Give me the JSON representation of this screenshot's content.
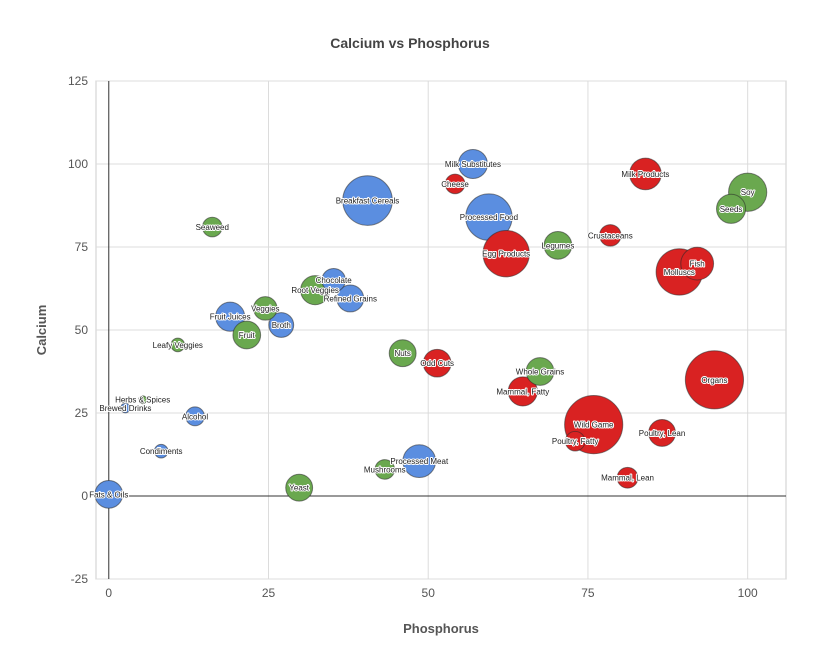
{
  "chart_data": {
    "type": "scatter",
    "variant": "bubble",
    "title": "Calcium vs Phosphorus",
    "xlabel": "Phosphorus",
    "ylabel": "Calcium",
    "xlim": [
      -2,
      106
    ],
    "ylim": [
      -25,
      125
    ],
    "xticks": [
      0,
      25,
      50,
      75,
      100
    ],
    "yticks": [
      -25,
      0,
      25,
      50,
      75,
      100,
      125
    ],
    "grid": true,
    "legend": "none",
    "colors": {
      "blue": "#5B8EE0",
      "green": "#6AA84F",
      "red": "#D92222"
    },
    "points": [
      {
        "label": "Fats & Oils",
        "x": 0,
        "y": 0.5,
        "size": 5,
        "color": "blue"
      },
      {
        "label": "Herbs & Spices",
        "x": 5.3,
        "y": 29,
        "size": 0.2,
        "color": "green"
      },
      {
        "label": "Brewed Drinks",
        "x": 2.6,
        "y": 26.5,
        "size": 0.6,
        "color": "blue"
      },
      {
        "label": "Alcohol",
        "x": 13.5,
        "y": 24,
        "size": 2.3,
        "color": "blue"
      },
      {
        "label": "Condiments",
        "x": 8.2,
        "y": 13.5,
        "size": 1.2,
        "color": "blue"
      },
      {
        "label": "Leafy Veggies",
        "x": 10.8,
        "y": 45.5,
        "size": 1.2,
        "color": "green"
      },
      {
        "label": "Seaweed",
        "x": 16.2,
        "y": 81,
        "size": 2.5,
        "color": "green"
      },
      {
        "label": "Fruit Juices",
        "x": 19,
        "y": 54,
        "size": 5.5,
        "color": "blue"
      },
      {
        "label": "Fruit",
        "x": 21.6,
        "y": 48.5,
        "size": 5,
        "color": "green"
      },
      {
        "label": "Veggies",
        "x": 24.5,
        "y": 56.5,
        "size": 3.6,
        "color": "green"
      },
      {
        "label": "Broth",
        "x": 27,
        "y": 51.5,
        "size": 4,
        "color": "blue"
      },
      {
        "label": "Yeast",
        "x": 29.8,
        "y": 2.5,
        "size": 4.7,
        "color": "green"
      },
      {
        "label": "Root Veggies",
        "x": 32.3,
        "y": 62,
        "size": 5.5,
        "color": "green"
      },
      {
        "label": "Chocolate",
        "x": 35.2,
        "y": 65,
        "size": 3.6,
        "color": "blue"
      },
      {
        "label": "Refined Grains",
        "x": 37.8,
        "y": 59.5,
        "size": 4.7,
        "color": "blue"
      },
      {
        "label": "Breakfast Cereals",
        "x": 40.5,
        "y": 89,
        "size": 16,
        "color": "blue"
      },
      {
        "label": "Mushrooms",
        "x": 43.2,
        "y": 8,
        "size": 2.5,
        "color": "green"
      },
      {
        "label": "Nuts",
        "x": 46,
        "y": 43,
        "size": 4.7,
        "color": "green"
      },
      {
        "label": "Processed Meat",
        "x": 48.6,
        "y": 10.5,
        "size": 7,
        "color": "blue"
      },
      {
        "label": "Odd Cuts",
        "x": 51.4,
        "y": 40,
        "size": 5,
        "color": "red"
      },
      {
        "label": "Cheese",
        "x": 54.2,
        "y": 94,
        "size": 2.5,
        "color": "red"
      },
      {
        "label": "Milk Substitutes",
        "x": 57,
        "y": 100,
        "size": 5.5,
        "color": "blue"
      },
      {
        "label": "Processed Food",
        "x": 59.5,
        "y": 84,
        "size": 14,
        "color": "blue"
      },
      {
        "label": "Egg Products",
        "x": 62.2,
        "y": 73,
        "size": 14,
        "color": "red"
      },
      {
        "label": "Mammal, Fatty",
        "x": 64.8,
        "y": 31.5,
        "size": 5.5,
        "color": "red"
      },
      {
        "label": "Whole Grains",
        "x": 67.5,
        "y": 37.5,
        "size": 5,
        "color": "green"
      },
      {
        "label": "Legumes",
        "x": 70.3,
        "y": 75.5,
        "size": 5,
        "color": "green"
      },
      {
        "label": "Poultry, Fatty",
        "x": 73,
        "y": 16.5,
        "size": 2.5,
        "color": "red"
      },
      {
        "label": "Wild Game",
        "x": 75.9,
        "y": 21.5,
        "size": 22,
        "color": "red"
      },
      {
        "label": "Crustaceans",
        "x": 78.5,
        "y": 78.5,
        "size": 3,
        "color": "red"
      },
      {
        "label": "Mammal, Lean",
        "x": 81.2,
        "y": 5.5,
        "size": 2.8,
        "color": "red"
      },
      {
        "label": "Milk Products",
        "x": 84,
        "y": 97,
        "size": 6.5,
        "color": "red"
      },
      {
        "label": "Poultry, Lean",
        "x": 86.6,
        "y": 19,
        "size": 4.7,
        "color": "red"
      },
      {
        "label": "Molluscs",
        "x": 89.3,
        "y": 67.5,
        "size": 14,
        "color": "red"
      },
      {
        "label": "Fish",
        "x": 92.1,
        "y": 70,
        "size": 7,
        "color": "red"
      },
      {
        "label": "Organs",
        "x": 94.8,
        "y": 35,
        "size": 22,
        "color": "red"
      },
      {
        "label": "Seeds",
        "x": 97.4,
        "y": 86.5,
        "size": 5.5,
        "color": "green"
      },
      {
        "label": "Soy",
        "x": 100,
        "y": 91.5,
        "size": 9.5,
        "color": "green"
      }
    ]
  }
}
